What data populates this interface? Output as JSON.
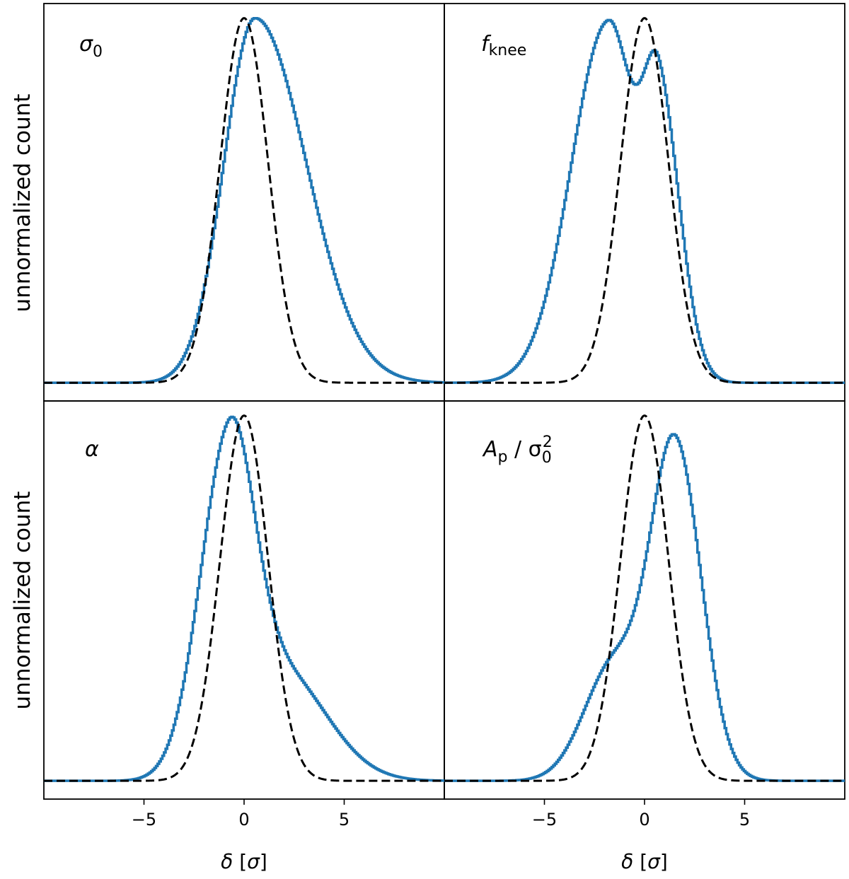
{
  "chart_data": {
    "type": "line",
    "layout": "2x2 grid, shared axes",
    "ylabel": "unnormalized count",
    "xlabel": "δ [σ]",
    "xlabel_symbol": "δ",
    "xlabel_unit": "σ",
    "xlim": [
      -10,
      10
    ],
    "xticks": [
      -5,
      0,
      5
    ],
    "xtick_labels": [
      "−5",
      "0",
      "5"
    ],
    "ylim": [
      -0.05,
      1.04
    ],
    "series_styles": {
      "histogram": {
        "color": "#1f77b4",
        "style": "solid step"
      },
      "reference": {
        "color": "#000000",
        "style": "dashed"
      }
    },
    "panels": [
      {
        "id": "sigma0",
        "label_main": "σ",
        "label_sub": "0",
        "label_rest": "",
        "histogram": [
          {
            "mu": 0.55,
            "sl": 1.55,
            "sr": 2.55,
            "a": 1.0
          }
        ],
        "reference": {
          "mu": 0,
          "sigma": 1.2
        }
      },
      {
        "id": "fknee",
        "label_main": "f",
        "label_sub": "knee",
        "label_rest": "",
        "histogram": [
          {
            "mu": -1.8,
            "sl": 1.85,
            "sr": 1.3,
            "a": 0.99
          },
          {
            "mu": 0.75,
            "sl": 0.8,
            "sr": 1.05,
            "a": 0.74
          }
        ],
        "reference": {
          "mu": 0,
          "sigma": 1.2
        }
      },
      {
        "id": "alpha",
        "label_main": "α",
        "label_sub": "",
        "label_rest": "",
        "histogram": [
          {
            "mu": -0.75,
            "sl": 1.45,
            "sr": 1.2,
            "a": 0.88
          },
          {
            "mu": 1.8,
            "sl": 1.8,
            "sr": 2.3,
            "a": 0.3
          }
        ],
        "reference": {
          "mu": 0,
          "sigma": 1.2
        }
      },
      {
        "id": "ap",
        "label_main": "A",
        "label_sub": "p",
        "label_rest": " / σ",
        "label_rest_sub": "0",
        "label_rest_sup": "2",
        "histogram": [
          {
            "mu": 1.55,
            "sl": 1.2,
            "sr": 1.3,
            "a": 0.9
          },
          {
            "mu": -1.5,
            "sl": 1.5,
            "sr": 1.55,
            "a": 0.32
          }
        ],
        "reference": {
          "mu": 0,
          "sigma": 1.2
        }
      }
    ]
  }
}
